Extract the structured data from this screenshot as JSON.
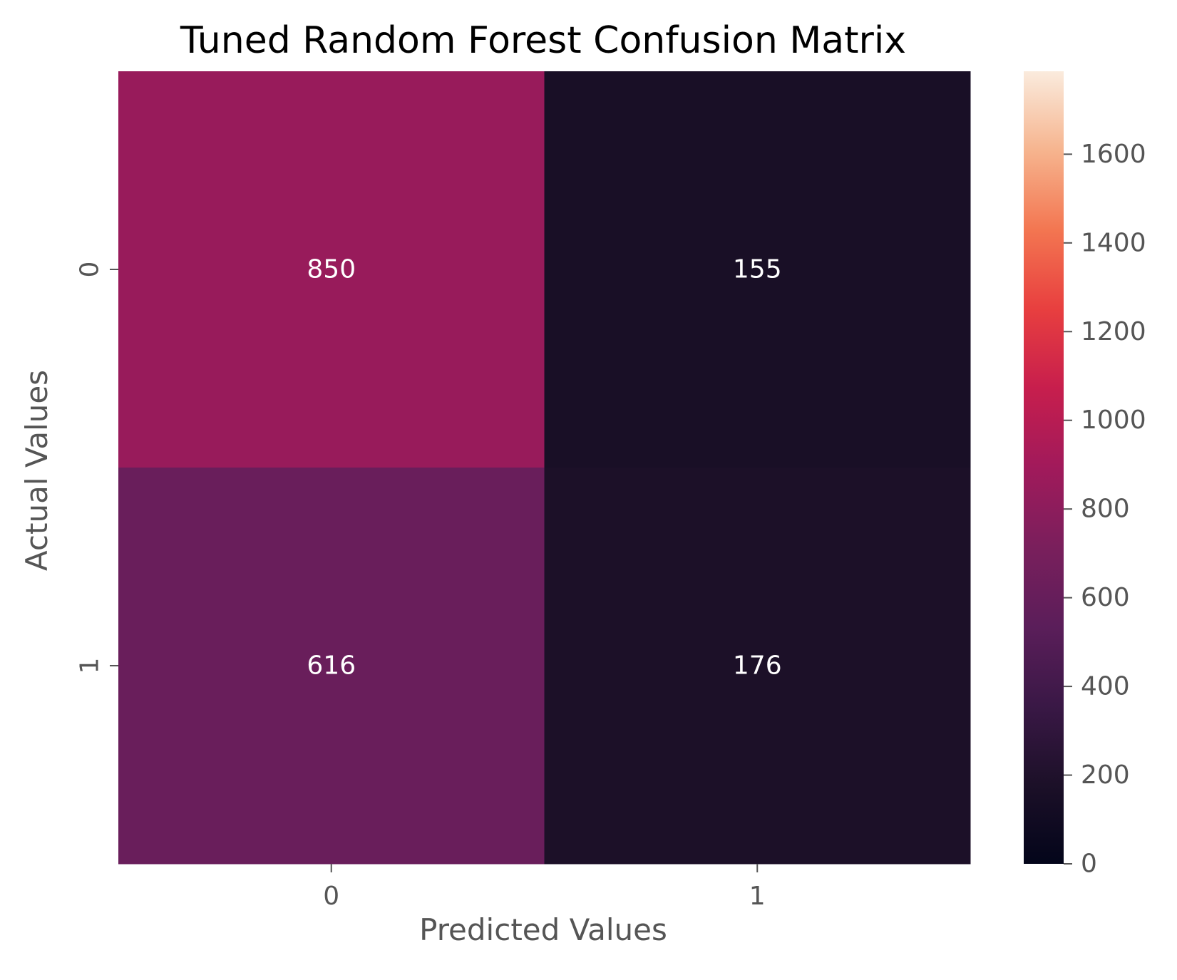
{
  "chart_data": {
    "type": "heatmap",
    "title": "Tuned Random Forest Confusion Matrix",
    "xlabel": "Predicted Values",
    "ylabel": "Actual Values",
    "x_categories": [
      "0",
      "1"
    ],
    "y_categories": [
      "0",
      "1"
    ],
    "values": [
      [
        850,
        155
      ],
      [
        616,
        176
      ]
    ],
    "value_labels": [
      [
        "850",
        "155"
      ],
      [
        "616",
        "176"
      ]
    ],
    "colormap": "rocket",
    "colorbar": {
      "range": [
        0,
        1787
      ],
      "ticks": [
        0,
        200,
        400,
        600,
        800,
        1000,
        1200,
        1400,
        1600
      ],
      "tick_labels": [
        "0",
        "200",
        "400",
        "600",
        "800",
        "1000",
        "1200",
        "1400",
        "1600"
      ]
    },
    "annotation_color": "#ffffff"
  }
}
